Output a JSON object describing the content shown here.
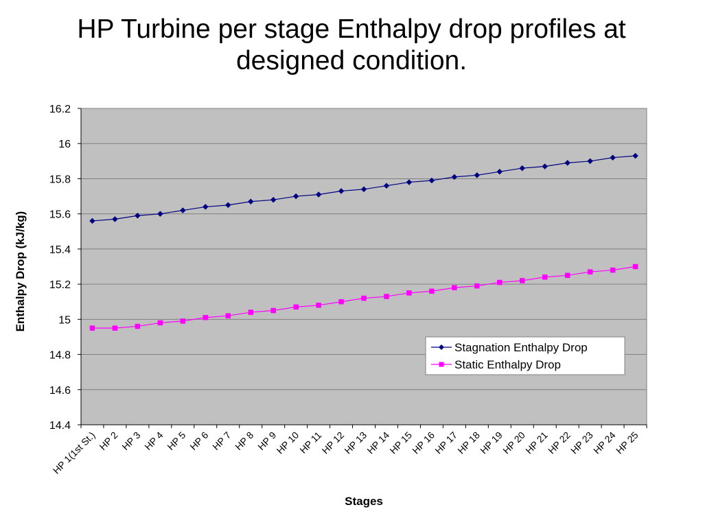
{
  "slide": {
    "title_line1": "HP Turbine per stage Enthalpy drop profiles at",
    "title_line2": "designed condition."
  },
  "colors": {
    "plot_background": "#c0c0c0",
    "gridline": "#808080",
    "stagnation": "#000080",
    "static": "#ff00ff"
  },
  "chart_data": {
    "type": "line",
    "title": "HP Turbine per stage Enthalpy drop profiles at designed condition.",
    "xlabel": "Stages",
    "ylabel": "Enthalpy Drop (kJ/kg)",
    "ylim": [
      14.4,
      16.2
    ],
    "yticks": [
      14.4,
      14.6,
      14.8,
      15,
      15.2,
      15.4,
      15.6,
      15.8,
      16,
      16.2
    ],
    "grid": true,
    "legend_position": "bottom-right",
    "categories": [
      "HP 1(1st St.)",
      "HP 2",
      "HP 3",
      "HP 4",
      "HP 5",
      "HP 6",
      "HP 7",
      "HP 8",
      "HP 9",
      "HP 10",
      "HP 11",
      "HP 12",
      "HP 13",
      "HP 14",
      "HP 15",
      "HP 16",
      "HP 17",
      "HP 18",
      "HP 19",
      "HP 20",
      "HP 21",
      "HP 22",
      "HP 23",
      "HP 24",
      "HP 25"
    ],
    "series": [
      {
        "name": "Stagnation Enthalpy Drop",
        "marker": "diamond",
        "values": [
          15.56,
          15.57,
          15.59,
          15.6,
          15.62,
          15.64,
          15.65,
          15.67,
          15.68,
          15.7,
          15.71,
          15.73,
          15.74,
          15.76,
          15.78,
          15.79,
          15.81,
          15.82,
          15.84,
          15.86,
          15.87,
          15.89,
          15.9,
          15.92,
          15.93
        ]
      },
      {
        "name": "Static Enthalpy Drop",
        "marker": "square",
        "values": [
          14.95,
          14.95,
          14.96,
          14.98,
          14.99,
          15.01,
          15.02,
          15.04,
          15.05,
          15.07,
          15.08,
          15.1,
          15.12,
          15.13,
          15.15,
          15.16,
          15.18,
          15.19,
          15.21,
          15.22,
          15.24,
          15.25,
          15.27,
          15.28,
          15.3
        ]
      }
    ]
  }
}
